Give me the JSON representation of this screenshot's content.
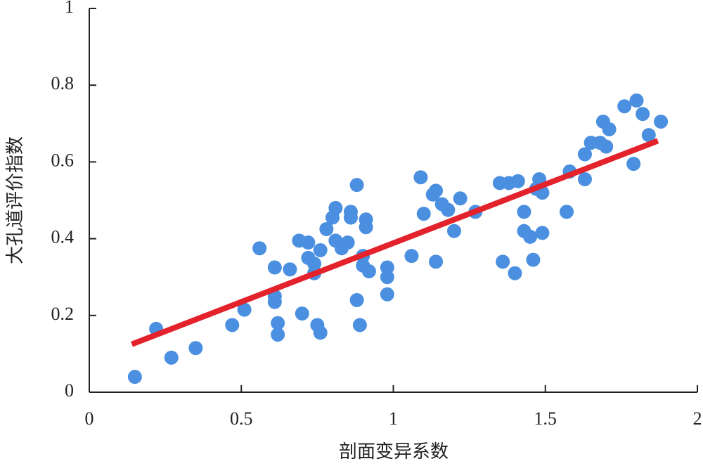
{
  "chart_data": {
    "type": "scatter",
    "x_label": "剖面变异系数",
    "y_label": "大孔道评价指数",
    "xlim": [
      0,
      2
    ],
    "ylim": [
      0,
      1
    ],
    "xticks": [
      0,
      0.5,
      1,
      1.5,
      2
    ],
    "yticks": [
      0,
      0.2,
      0.4,
      0.6,
      0.8,
      1
    ],
    "points": {
      "color": "#4a8fe0",
      "x": [
        0.15,
        0.22,
        0.27,
        0.35,
        0.47,
        0.51,
        0.56,
        0.61,
        0.61,
        0.61,
        0.62,
        0.62,
        0.66,
        0.69,
        0.7,
        0.72,
        0.72,
        0.74,
        0.74,
        0.76,
        0.75,
        0.76,
        0.78,
        0.8,
        0.81,
        0.81,
        0.83,
        0.85,
        0.86,
        0.86,
        0.88,
        0.88,
        0.89,
        0.9,
        0.9,
        0.91,
        0.91,
        0.92,
        0.98,
        0.98,
        0.98,
        1.06,
        1.09,
        1.1,
        1.13,
        1.14,
        1.14,
        1.16,
        1.18,
        1.2,
        1.22,
        1.27,
        1.35,
        1.36,
        1.38,
        1.4,
        1.41,
        1.43,
        1.43,
        1.45,
        1.46,
        1.47,
        1.48,
        1.49,
        1.49,
        1.57,
        1.58,
        1.63,
        1.63,
        1.65,
        1.68,
        1.69,
        1.7,
        1.71,
        1.76,
        1.79,
        1.8,
        1.82,
        1.84,
        1.88
      ],
      "values": [
        0.04,
        0.165,
        0.09,
        0.115,
        0.175,
        0.215,
        0.375,
        0.235,
        0.325,
        0.25,
        0.18,
        0.15,
        0.32,
        0.395,
        0.205,
        0.39,
        0.35,
        0.31,
        0.335,
        0.37,
        0.175,
        0.155,
        0.425,
        0.455,
        0.48,
        0.395,
        0.375,
        0.39,
        0.47,
        0.455,
        0.54,
        0.24,
        0.175,
        0.355,
        0.33,
        0.45,
        0.43,
        0.315,
        0.325,
        0.3,
        0.255,
        0.355,
        0.56,
        0.465,
        0.515,
        0.525,
        0.34,
        0.49,
        0.475,
        0.42,
        0.505,
        0.47,
        0.545,
        0.34,
        0.545,
        0.31,
        0.55,
        0.47,
        0.42,
        0.405,
        0.345,
        0.53,
        0.555,
        0.52,
        0.415,
        0.47,
        0.575,
        0.555,
        0.62,
        0.65,
        0.65,
        0.705,
        0.64,
        0.685,
        0.745,
        0.595,
        0.76,
        0.725,
        0.67,
        0.705
      ]
    },
    "fit": {
      "color": "#e3222b",
      "x": [
        0.14,
        1.87
      ],
      "values": [
        0.125,
        0.655
      ]
    }
  }
}
